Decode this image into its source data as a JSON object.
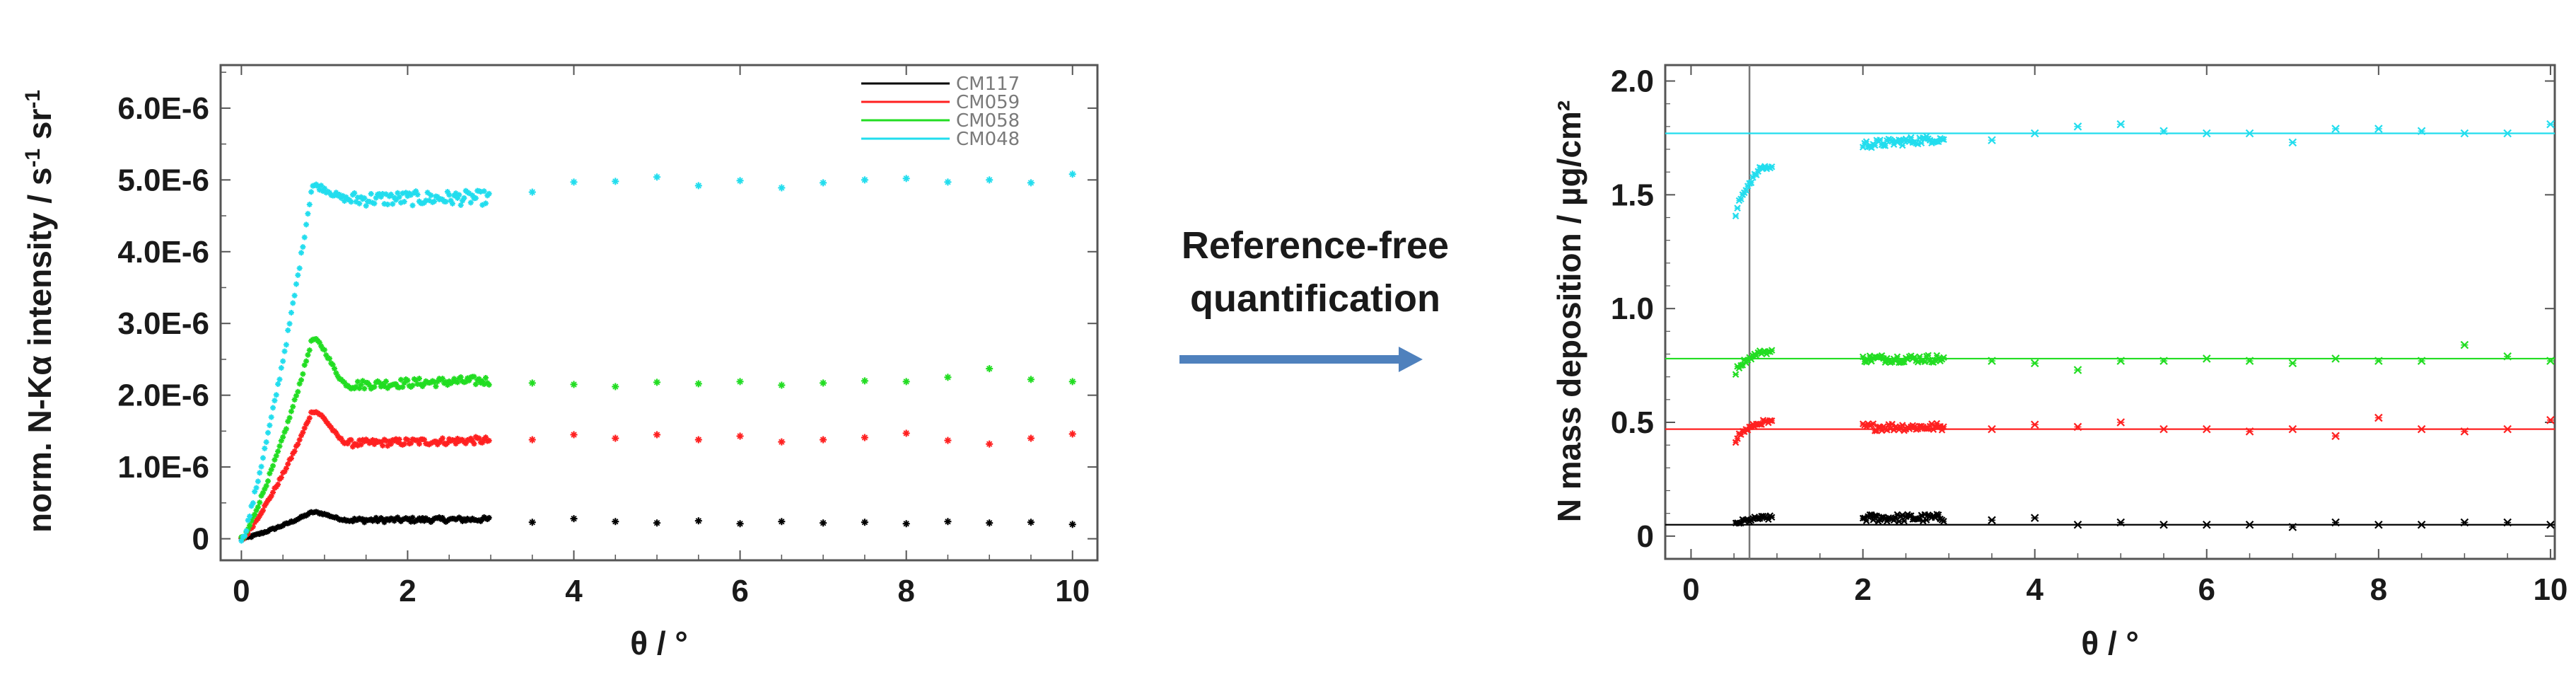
{
  "arrow_label": {
    "line1": "Reference-free",
    "line2": "quantification"
  },
  "colors": {
    "CM117": "#000000",
    "CM059": "#ff2020",
    "CM058": "#22dd22",
    "CM048": "#22ddee",
    "arrow": "#4f81bd",
    "axis": "#555555"
  },
  "chart_data": [
    {
      "type": "scatter",
      "title": "",
      "xlabel": "θ / °",
      "ylabel_main": "norm. N-Kα intensity / s",
      "ylabel_sup1": "-1",
      "ylabel_mid": " sr",
      "ylabel_sup2": "-1",
      "xlim": [
        -0.25,
        10.3
      ],
      "ylim": [
        -3e-07,
        6.6e-06
      ],
      "xticks": [
        0,
        2,
        4,
        6,
        8,
        10
      ],
      "xtick_labels": [
        "0",
        "2",
        "4",
        "6",
        "8",
        "10"
      ],
      "yticks": [
        0,
        1e-06,
        2e-06,
        3e-06,
        4e-06,
        5e-06,
        6e-06
      ],
      "ytick_labels": [
        "0",
        "1.0E-6",
        "2.0E-6",
        "3.0E-6",
        "4.0E-6",
        "5.0E-6",
        "6.0E-6"
      ],
      "legend": [
        "CM117",
        "CM059",
        "CM058",
        "CM048"
      ],
      "legend_position": "top-right",
      "series": [
        {
          "name": "CM117",
          "color": "#000000",
          "peak": 3.7e-07,
          "plateau": 2.7e-07,
          "sparse_x": [
            3.5,
            4,
            4.5,
            5,
            5.5,
            6,
            6.5,
            7,
            7.5,
            8,
            8.5,
            9,
            9.5,
            10
          ],
          "sparse_y": [
            2.3e-07,
            2.8e-07,
            2.4e-07,
            2.2e-07,
            2.5e-07,
            2.1e-07,
            2.4e-07,
            2.2e-07,
            2.3e-07,
            2.1e-07,
            2.4e-07,
            2.2e-07,
            2.3e-07,
            2e-07
          ]
        },
        {
          "name": "CM059",
          "color": "#ff2020",
          "peak": 1.78e-06,
          "plateau": 1.37e-06,
          "sparse_x": [
            3.5,
            4,
            4.5,
            5,
            5.5,
            6,
            6.5,
            7,
            7.5,
            8,
            8.5,
            9,
            9.5,
            10
          ],
          "sparse_y": [
            1.38e-06,
            1.45e-06,
            1.4e-06,
            1.45e-06,
            1.38e-06,
            1.43e-06,
            1.35e-06,
            1.38e-06,
            1.41e-06,
            1.47e-06,
            1.37e-06,
            1.32e-06,
            1.4e-06,
            1.46e-06
          ]
        },
        {
          "name": "CM058",
          "color": "#22dd22",
          "peak": 2.78e-06,
          "plateau": 2.2e-06,
          "sparse_x": [
            3.5,
            4,
            4.5,
            5,
            5.5,
            6,
            6.5,
            7,
            7.5,
            8,
            8.5,
            9,
            9.5,
            10
          ],
          "sparse_y": [
            2.17e-06,
            2.15e-06,
            2.12e-06,
            2.18e-06,
            2.16e-06,
            2.19e-06,
            2.14e-06,
            2.17e-06,
            2.2e-06,
            2.19e-06,
            2.25e-06,
            2.37e-06,
            2.22e-06,
            2.19e-06
          ]
        },
        {
          "name": "CM048",
          "color": "#22ddee",
          "peak": 4.92e-06,
          "plateau": 4.75e-06,
          "sparse_x": [
            3.5,
            4,
            4.5,
            5,
            5.5,
            6,
            6.5,
            7,
            7.5,
            8,
            8.5,
            9,
            9.5,
            10
          ],
          "sparse_y": [
            4.83e-06,
            4.97e-06,
            4.98e-06,
            5.04e-06,
            4.92e-06,
            4.99e-06,
            4.89e-06,
            4.96e-06,
            5e-06,
            5.02e-06,
            4.97e-06,
            5e-06,
            4.96e-06,
            5.08e-06
          ]
        }
      ]
    },
    {
      "type": "scatter",
      "title": "",
      "xlabel": "θ / °",
      "ylabel": "N mass deposition  / µg/cm²",
      "xlim": [
        -0.3,
        10.05
      ],
      "ylim": [
        -0.1,
        2.07
      ],
      "xticks": [
        0,
        2,
        4,
        6,
        8,
        10
      ],
      "xtick_labels": [
        "0",
        "2",
        "4",
        "6",
        "8",
        "10"
      ],
      "yticks": [
        0,
        0.5,
        1.0,
        1.5,
        2.0
      ],
      "ytick_labels": [
        "0",
        "0.5",
        "1.0",
        "1.5",
        "2.0"
      ],
      "vline_x": 0.68,
      "series": [
        {
          "name": "CM117",
          "color": "#000000",
          "fit": 0.05,
          "start": 0.05,
          "group2": 0.08,
          "sparse_x": [
            3.5,
            4,
            4.5,
            5,
            5.5,
            6,
            6.5,
            7,
            7.5,
            8,
            8.5,
            9,
            9.5,
            10
          ],
          "sparse_y": [
            0.07,
            0.08,
            0.05,
            0.06,
            0.05,
            0.05,
            0.05,
            0.04,
            0.06,
            0.05,
            0.05,
            0.06,
            0.06,
            0.05
          ]
        },
        {
          "name": "CM059",
          "color": "#ff2020",
          "fit": 0.47,
          "start": 0.42,
          "group2": 0.48,
          "sparse_x": [
            3.5,
            4,
            4.5,
            5,
            5.5,
            6,
            6.5,
            7,
            7.5,
            8,
            8.5,
            9,
            9.5,
            10
          ],
          "sparse_y": [
            0.47,
            0.49,
            0.48,
            0.5,
            0.47,
            0.47,
            0.46,
            0.47,
            0.44,
            0.52,
            0.47,
            0.46,
            0.47,
            0.51
          ]
        },
        {
          "name": "CM058",
          "color": "#22dd22",
          "fit": 0.78,
          "start": 0.72,
          "group2": 0.78,
          "sparse_x": [
            3.5,
            4,
            4.5,
            5,
            5.5,
            6,
            6.5,
            7,
            7.5,
            8,
            8.5,
            9,
            9.5,
            10
          ],
          "sparse_y": [
            0.77,
            0.76,
            0.73,
            0.77,
            0.77,
            0.78,
            0.77,
            0.76,
            0.78,
            0.77,
            0.77,
            0.84,
            0.79,
            0.77
          ]
        },
        {
          "name": "CM048",
          "color": "#22ddee",
          "fit": 1.77,
          "start": 1.4,
          "group2": 1.72,
          "sparse_x": [
            3.5,
            4,
            4.5,
            5,
            5.5,
            6,
            6.5,
            7,
            7.5,
            8,
            8.5,
            9,
            9.5,
            10
          ],
          "sparse_y": [
            1.74,
            1.77,
            1.8,
            1.81,
            1.78,
            1.77,
            1.77,
            1.73,
            1.79,
            1.79,
            1.78,
            1.77,
            1.77,
            1.81
          ]
        }
      ]
    }
  ]
}
